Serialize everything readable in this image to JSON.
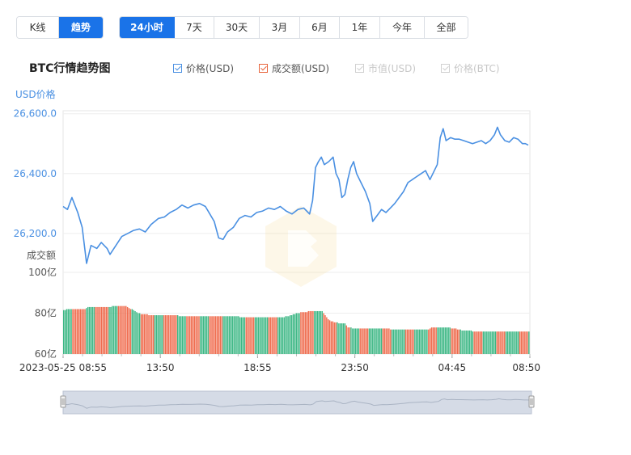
{
  "view_tabs": [
    {
      "label": "K线",
      "active": false
    },
    {
      "label": "趋势",
      "active": true
    }
  ],
  "range_tabs": [
    {
      "label": "24小时",
      "active": true
    },
    {
      "label": "7天",
      "active": false
    },
    {
      "label": "30天",
      "active": false
    },
    {
      "label": "3月",
      "active": false
    },
    {
      "label": "6月",
      "active": false
    },
    {
      "label": "1年",
      "active": false
    },
    {
      "label": "今年",
      "active": false
    },
    {
      "label": "全部",
      "active": false
    }
  ],
  "title": "BTC行情趋势图",
  "legend": [
    {
      "label": "价格(USD)",
      "color": "#4a90e2",
      "checked": true,
      "enabled": true
    },
    {
      "label": "成交额(USD)",
      "color": "#e8663d",
      "checked": true,
      "enabled": true
    },
    {
      "label": "市值(USD)",
      "color": "#c8c8c8",
      "checked": true,
      "enabled": false
    },
    {
      "label": "价格(BTC)",
      "color": "#c8c8c8",
      "checked": true,
      "enabled": false
    }
  ],
  "colors": {
    "price_line": "#4a90e2",
    "axis_text_price": "#4a90e2",
    "bar_up": "#3cb784",
    "bar_down": "#ef6b4d",
    "grid": "#eeeeee",
    "navigator_fill": "#d5dbe6",
    "navigator_line": "#b9c2d0"
  },
  "chart_data": {
    "type": "line",
    "price": {
      "ylabel": "USD价格",
      "yticks": [
        "26,600.0",
        "26,400.0",
        "26,200.0"
      ],
      "ytick_values": [
        26600,
        26400,
        26200
      ],
      "ylim": [
        26070,
        26610
      ],
      "series": [
        {
          "name": "价格(USD)",
          "points": [
            [
              0,
              26290
            ],
            [
              0.3,
              26280
            ],
            [
              0.6,
              26320
            ],
            [
              1.0,
              26270
            ],
            [
              1.3,
              26220
            ],
            [
              1.6,
              26100
            ],
            [
              1.9,
              26160
            ],
            [
              2.3,
              26150
            ],
            [
              2.6,
              26170
            ],
            [
              3.0,
              26150
            ],
            [
              3.2,
              26130
            ],
            [
              3.6,
              26160
            ],
            [
              4.0,
              26190
            ],
            [
              4.4,
              26200
            ],
            [
              4.8,
              26210
            ],
            [
              5.2,
              26215
            ],
            [
              5.6,
              26205
            ],
            [
              6.0,
              26230
            ],
            [
              6.5,
              26250
            ],
            [
              6.9,
              26255
            ],
            [
              7.3,
              26270
            ],
            [
              7.7,
              26280
            ],
            [
              8.1,
              26295
            ],
            [
              8.5,
              26285
            ],
            [
              8.9,
              26295
            ],
            [
              9.3,
              26300
            ],
            [
              9.7,
              26290
            ],
            [
              10.0,
              26265
            ],
            [
              10.3,
              26240
            ],
            [
              10.6,
              26185
            ],
            [
              10.9,
              26180
            ],
            [
              11.2,
              26205
            ],
            [
              11.6,
              26220
            ],
            [
              12.0,
              26250
            ],
            [
              12.4,
              26260
            ],
            [
              12.8,
              26255
            ],
            [
              13.2,
              26270
            ],
            [
              13.6,
              26275
            ],
            [
              14.0,
              26285
            ],
            [
              14.4,
              26280
            ],
            [
              14.8,
              26290
            ],
            [
              15.2,
              26275
            ],
            [
              15.6,
              26265
            ],
            [
              16.0,
              26280
            ],
            [
              16.4,
              26285
            ],
            [
              16.8,
              26265
            ],
            [
              17.0,
              26310
            ],
            [
              17.2,
              26420
            ],
            [
              17.4,
              26440
            ],
            [
              17.6,
              26455
            ],
            [
              17.8,
              26430
            ],
            [
              18.1,
              26440
            ],
            [
              18.4,
              26455
            ],
            [
              18.6,
              26400
            ],
            [
              18.8,
              26380
            ],
            [
              19.0,
              26320
            ],
            [
              19.2,
              26330
            ],
            [
              19.4,
              26380
            ],
            [
              19.6,
              26420
            ],
            [
              19.8,
              26440
            ],
            [
              20.0,
              26400
            ],
            [
              20.3,
              26370
            ],
            [
              20.6,
              26340
            ],
            [
              20.9,
              26300
            ],
            [
              21.1,
              26240
            ],
            [
              21.4,
              26260
            ],
            [
              21.7,
              26280
            ],
            [
              22.0,
              26270
            ],
            [
              22.3,
              26285
            ],
            [
              22.6,
              26300
            ],
            [
              22.9,
              26320
            ],
            [
              23.2,
              26340
            ],
            [
              23.5,
              26370
            ],
            [
              23.8,
              26380
            ],
            [
              24.1,
              26390
            ],
            [
              24.4,
              26400
            ],
            [
              24.7,
              26410
            ],
            [
              25.0,
              26380
            ],
            [
              25.2,
              26400
            ],
            [
              25.5,
              26430
            ],
            [
              25.7,
              26520
            ],
            [
              25.9,
              26550
            ],
            [
              26.1,
              26510
            ],
            [
              26.4,
              26520
            ],
            [
              26.7,
              26515
            ],
            [
              27.0,
              26515
            ],
            [
              27.3,
              26510
            ],
            [
              27.6,
              26505
            ],
            [
              27.9,
              26500
            ],
            [
              28.2,
              26505
            ],
            [
              28.5,
              26510
            ],
            [
              28.8,
              26500
            ],
            [
              29.1,
              26510
            ],
            [
              29.4,
              26530
            ],
            [
              29.6,
              26555
            ],
            [
              29.8,
              26530
            ],
            [
              30.1,
              26510
            ],
            [
              30.4,
              26505
            ],
            [
              30.7,
              26520
            ],
            [
              31.0,
              26515
            ],
            [
              31.3,
              26500
            ],
            [
              31.5,
              26500
            ],
            [
              31.7,
              26495
            ]
          ]
        }
      ]
    },
    "volume": {
      "ylabel": "成交额",
      "yticks": [
        "100亿",
        "80亿",
        "60亿"
      ],
      "ytick_values": [
        100,
        80,
        60
      ],
      "ylim": [
        60,
        100
      ],
      "bar_values_yi": [
        81.5,
        81.5,
        82,
        82,
        82,
        82,
        82,
        82,
        82,
        82,
        82,
        82,
        82,
        82,
        82,
        82.5,
        83,
        83,
        83,
        83,
        83,
        83,
        83,
        83,
        83,
        83,
        83,
        83,
        83,
        83,
        83,
        83,
        83.5,
        83.5,
        83.5,
        83.5,
        83.5,
        83.5,
        83.5,
        83.5,
        83.5,
        83.5,
        83,
        82.5,
        82,
        82,
        81.5,
        81,
        80.5,
        80,
        80,
        79.5,
        79.5,
        79.5,
        79.5,
        79.5,
        79,
        79,
        79,
        79,
        79,
        79,
        79,
        79,
        79,
        79,
        79,
        79,
        79,
        79,
        79,
        79,
        79,
        79,
        79,
        79,
        78.5,
        78.5,
        78.5,
        78.5,
        78.5,
        78.5,
        78.5,
        78.5,
        78.5,
        78.5,
        78.5,
        78.5,
        78.5,
        78.5,
        78.5,
        78.5,
        78.5,
        78.5,
        78.5,
        78.5,
        78.5,
        78.5,
        78.5,
        78.5,
        78.5,
        78.5,
        78.5,
        78.5,
        78.5,
        78.5,
        78.5,
        78.5,
        78.5,
        78.5,
        78.5,
        78.5,
        78.5,
        78.5,
        78.5,
        78.5,
        78,
        78,
        78,
        78,
        78,
        78,
        78,
        78,
        78,
        78,
        78,
        78,
        78,
        78,
        78,
        78,
        78,
        78,
        78,
        78,
        78,
        78,
        78,
        78,
        78,
        78,
        78,
        78,
        78,
        78,
        78.5,
        78.5,
        78.5,
        79,
        79,
        79.5,
        79.5,
        80,
        80,
        80,
        80.5,
        80.5,
        80.5,
        80.5,
        80.5,
        81,
        81,
        81,
        81,
        81,
        81,
        81,
        81,
        81,
        81,
        80,
        79,
        78,
        77,
        76.5,
        76,
        76,
        75.5,
        75.5,
        75.5,
        75,
        75,
        75,
        75,
        75,
        74,
        73,
        73,
        73,
        72.5,
        72.5,
        72.5,
        72.5,
        72.5,
        72.5,
        72.5,
        72.5,
        72.5,
        72.5,
        72.5,
        72.5,
        72.5,
        72.5,
        72.5,
        72.5,
        72.5,
        72.5,
        72.5,
        72.5,
        72.5,
        72.5,
        72.5,
        72.5,
        72.5,
        72,
        72,
        72,
        72,
        72,
        72,
        72,
        72,
        72,
        72,
        72,
        72,
        72,
        72,
        72,
        72,
        72,
        72,
        72,
        72,
        72,
        72,
        72,
        72,
        72,
        72,
        72.5,
        73,
        73,
        73,
        73,
        73,
        73,
        73,
        73,
        73,
        73,
        73,
        73,
        73,
        72.5,
        72.5,
        72.5,
        72.5,
        72,
        72,
        72,
        71.5,
        71.5,
        71.5,
        71.5,
        71.5,
        71.5,
        71.5,
        71,
        71,
        71,
        71,
        71,
        71,
        71,
        71,
        71,
        71,
        71,
        71,
        71,
        71,
        71,
        71,
        71,
        71,
        71,
        71,
        71,
        71,
        71,
        71,
        71,
        71,
        71,
        71,
        71,
        71,
        71,
        71,
        71,
        71,
        71,
        71,
        71,
        71
      ],
      "bar_colors": "mixed red (down) and green (up) per bar"
    },
    "x": {
      "tick_labels": [
        "2023-05-25 08:55",
        "13:50",
        "18:55",
        "23:50",
        "04:45",
        "08:50"
      ],
      "tick_positions_hours": [
        0,
        5,
        10,
        15,
        20,
        24
      ],
      "xlim_hours": [
        0,
        24
      ]
    },
    "grid": true
  }
}
